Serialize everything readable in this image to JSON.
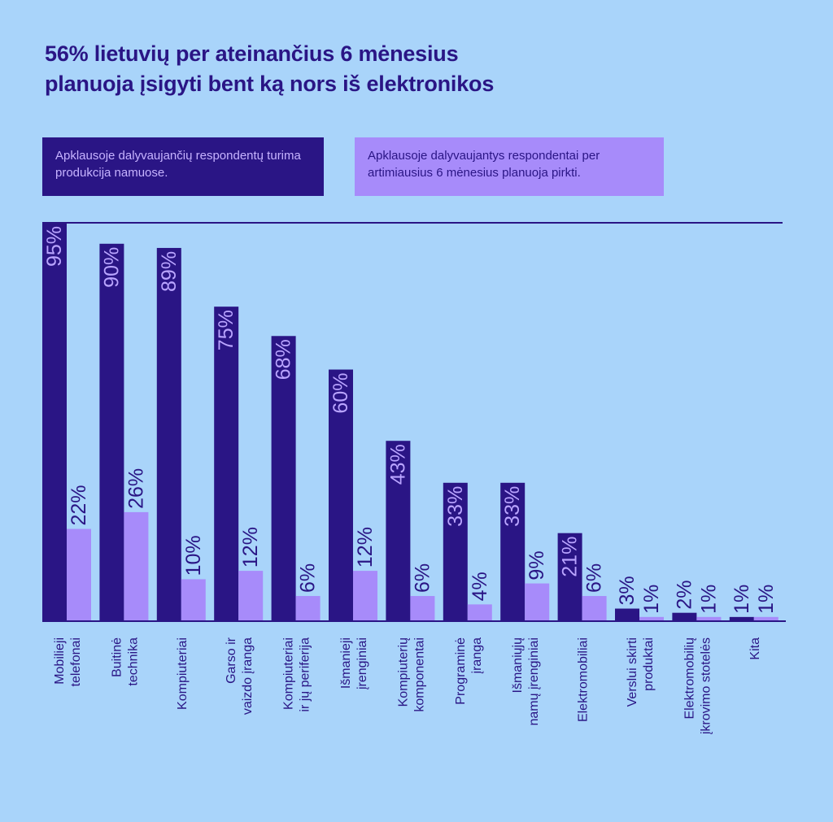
{
  "colors": {
    "background": "#a9d4fa",
    "owned": "#2a1585",
    "plan": "#a78bfa",
    "owned_label": "#b9a4ff"
  },
  "title_lines": [
    "56% lietuvių per ateinančius 6 mėnesius",
    "planuoja įsigyti bent ką nors iš elektronikos"
  ],
  "chart_data": {
    "type": "bar",
    "title": "56% lietuvių per ateinančius 6 mėnesius planuoja įsigyti bent ką nors iš elektronikos",
    "legend_position": "top",
    "ylim": [
      0,
      100
    ],
    "grid": false,
    "categories": [
      [
        "Mobilieji",
        "telefonai"
      ],
      [
        "Buitinė",
        "technika"
      ],
      [
        "Kompiuteriai"
      ],
      [
        "Garso ir",
        "vaizdo įranga"
      ],
      [
        "Kompiuteriai",
        "ir jų periferija"
      ],
      [
        "Išmanieji",
        "įrenginiai"
      ],
      [
        "Kompiuterių",
        "komponentai"
      ],
      [
        "Programinė",
        "įranga"
      ],
      [
        "Išmaniųjų",
        "namų įrenginiai"
      ],
      [
        "Elektromobiliai"
      ],
      [
        "Verslui skirti",
        "produktai"
      ],
      [
        "Elektromobilių",
        "įkrovimo stotelės"
      ],
      [
        "Kita"
      ]
    ],
    "series": [
      {
        "name": "Apklausoje dalyvaujančių respondentų turima produkcija namuose.",
        "values": [
          95,
          90,
          89,
          75,
          68,
          60,
          43,
          33,
          33,
          21,
          3,
          2,
          1
        ],
        "labels": [
          "95%",
          "90%",
          "89%",
          "75%",
          "68%",
          "60%",
          "43%",
          "33%",
          "33%",
          "21%",
          "3%",
          "2%",
          "1%"
        ]
      },
      {
        "name": "Apklausoje dalyvaujantys respondentai per artimiausius 6 mėnesius planuoja pirkti.",
        "values": [
          22,
          26,
          10,
          12,
          6,
          12,
          6,
          4,
          9,
          6,
          1,
          1,
          1
        ],
        "labels": [
          "22%",
          "26%",
          "10%",
          "12%",
          "6%",
          "12%",
          "6%",
          "4%",
          "9%",
          "6%",
          "1%",
          "1%",
          "1%"
        ]
      }
    ]
  }
}
